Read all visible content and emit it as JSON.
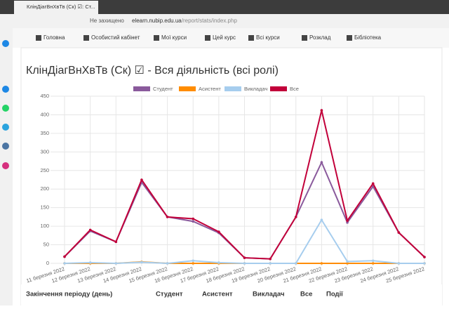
{
  "browser": {
    "tab_title": "КлінДіагВнХвТв (Ск) ☑: Ст...",
    "security": "Не захищено",
    "url_host": "elearn.nubip.edu.ua",
    "url_path": "/report/stats/index.php"
  },
  "nav": [
    "Головна",
    "Особистий кабінет",
    "Мої курси",
    "Цей курс",
    "Всі курси",
    "Розклад",
    "Бібліотека"
  ],
  "heading": "КлінДіагВнХвТв (Ск) ☑ - Вся діяльність (всі ролі)",
  "chart_data": {
    "type": "line",
    "categories": [
      "11 березня 2022",
      "12 березня 2022",
      "13 березня 2022",
      "14 березня 2022",
      "15 березня 2022",
      "16 березня 2022",
      "17 березня 2022",
      "18 березня 2022",
      "19 березня 2022",
      "20 березня 2022",
      "21 березня 2022",
      "22 березня 2022",
      "23 березня 2022",
      "24 березня 2022",
      "25 березня 2022"
    ],
    "series": [
      {
        "name": "Студент",
        "color": "#8a5a9c",
        "values": [
          18,
          87,
          58,
          218,
          125,
          113,
          82,
          15,
          12,
          125,
          272,
          110,
          207,
          83,
          17
        ]
      },
      {
        "name": "Асистент",
        "color": "#ff8c00",
        "values": [
          0,
          0,
          0,
          4,
          0,
          0,
          0,
          0,
          0,
          0,
          0,
          0,
          0,
          0,
          0
        ]
      },
      {
        "name": "Викладач",
        "color": "#a6cdee",
        "values": [
          0,
          2,
          0,
          3,
          0,
          7,
          2,
          0,
          0,
          0,
          117,
          5,
          7,
          0,
          0
        ]
      },
      {
        "name": "Все",
        "color": "#c2003a",
        "values": [
          18,
          90,
          58,
          225,
          125,
          120,
          85,
          15,
          12,
          125,
          412,
          115,
          215,
          83,
          17
        ]
      }
    ],
    "ylim": [
      0,
      450
    ],
    "yticks": [
      0,
      50,
      100,
      150,
      200,
      250,
      300,
      350,
      400,
      450
    ],
    "grid": true,
    "legend": "top"
  },
  "table": {
    "headers": [
      "Закінчення періоду (день)",
      "Студент",
      "Асистент",
      "Викладач",
      "Все",
      "Події"
    ]
  }
}
